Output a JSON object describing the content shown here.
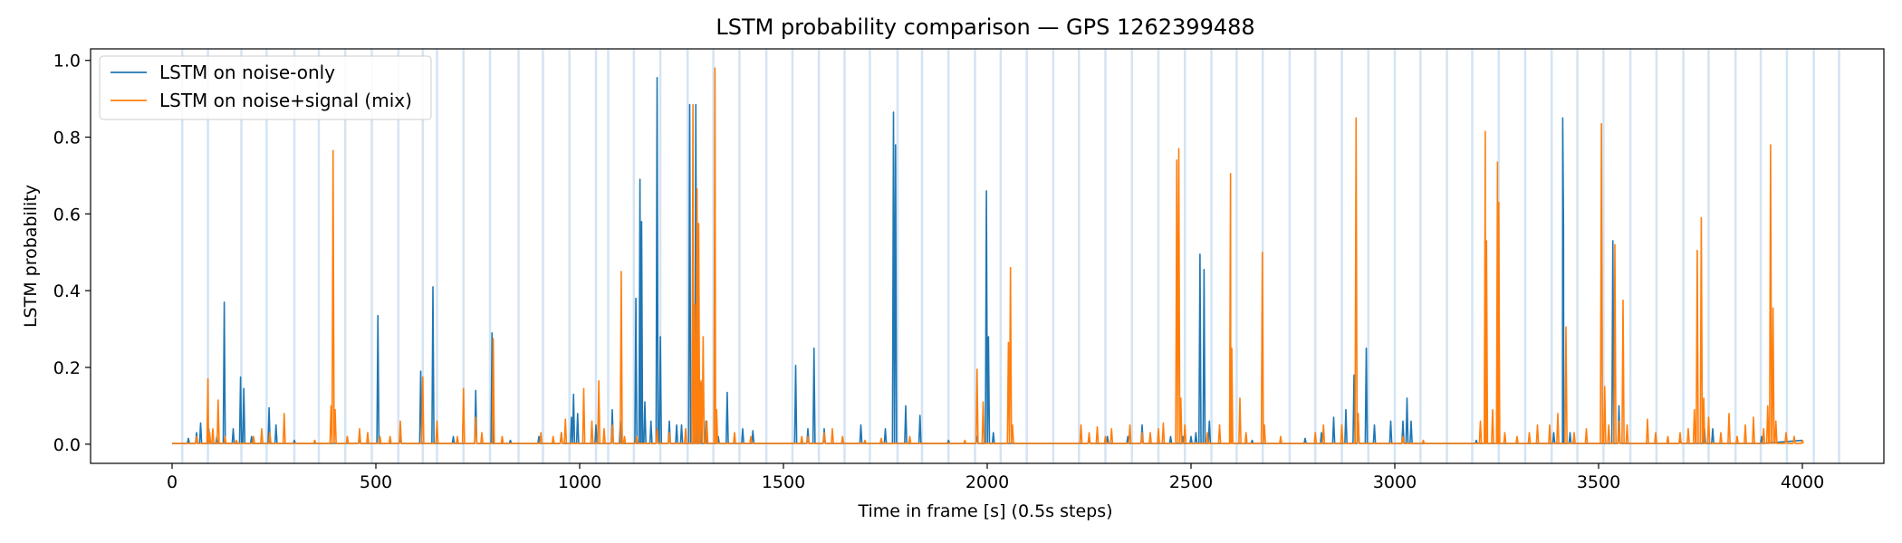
{
  "chart_data": {
    "type": "line",
    "title": "LSTM probability comparison — GPS 1262399488",
    "xlabel": "Time in frame [s] (0.5s steps)",
    "ylabel": "LSTM probability",
    "xlim": [
      -200,
      4200
    ],
    "ylim": [
      -0.05,
      1.03
    ],
    "x_ticks": [
      0,
      500,
      1000,
      1500,
      2000,
      2500,
      3000,
      3500,
      4000
    ],
    "x_tick_labels": [
      "0",
      "500",
      "1000",
      "1500",
      "2000",
      "2500",
      "3000",
      "3500",
      "4000"
    ],
    "y_ticks": [
      0.0,
      0.2,
      0.4,
      0.6,
      0.8,
      1.0
    ],
    "y_tick_labels": [
      "0.0",
      "0.2",
      "0.4",
      "0.6",
      "0.8",
      "1.0"
    ],
    "legend_position": "top-left",
    "colors": {
      "noise": "#1f77b4",
      "mix": "#ff7f0e",
      "band": "#c6dbef"
    },
    "vertical_bands_x": [
      25,
      88,
      170,
      232,
      300,
      360,
      425,
      490,
      555,
      615,
      650,
      715,
      780,
      850,
      910,
      975,
      1040,
      1070,
      1133,
      1198,
      1265,
      1328,
      1392,
      1458,
      1522,
      1587,
      1650,
      1712,
      1780,
      1840,
      1905,
      1970,
      2033,
      2097,
      2162,
      2225,
      2290,
      2355,
      2420,
      2485,
      2550,
      2612,
      2676,
      2742,
      2805,
      2870,
      2935,
      3000,
      3063,
      3128,
      3190,
      3255,
      3320,
      3385,
      3448,
      3512,
      3578,
      3642,
      3708,
      3770,
      3836,
      3898,
      3962,
      4028,
      4090
    ],
    "series": [
      {
        "name": "LSTM on noise-only",
        "color": "#1f77b4",
        "peaks": [
          [
            40,
            0.015
          ],
          [
            60,
            0.03
          ],
          [
            70,
            0.055
          ],
          [
            90,
            0.04
          ],
          [
            110,
            0.02
          ],
          [
            128,
            0.37
          ],
          [
            150,
            0.04
          ],
          [
            168,
            0.175
          ],
          [
            176,
            0.145
          ],
          [
            195,
            0.02
          ],
          [
            238,
            0.095
          ],
          [
            255,
            0.05
          ],
          [
            300,
            0.01
          ],
          [
            460,
            0.015
          ],
          [
            505,
            0.335
          ],
          [
            560,
            0.02
          ],
          [
            610,
            0.19
          ],
          [
            640,
            0.41
          ],
          [
            690,
            0.02
          ],
          [
            745,
            0.14
          ],
          [
            785,
            0.29
          ],
          [
            830,
            0.01
          ],
          [
            900,
            0.02
          ],
          [
            955,
            0.03
          ],
          [
            980,
            0.07
          ],
          [
            985,
            0.13
          ],
          [
            995,
            0.08
          ],
          [
            1040,
            0.05
          ],
          [
            1080,
            0.09
          ],
          [
            1100,
            0.06
          ],
          [
            1138,
            0.38
          ],
          [
            1148,
            0.69
          ],
          [
            1152,
            0.58
          ],
          [
            1160,
            0.11
          ],
          [
            1175,
            0.06
          ],
          [
            1190,
            0.955
          ],
          [
            1198,
            0.28
          ],
          [
            1220,
            0.06
          ],
          [
            1238,
            0.05
          ],
          [
            1250,
            0.05
          ],
          [
            1270,
            0.885
          ],
          [
            1285,
            0.885
          ],
          [
            1295,
            0.16
          ],
          [
            1310,
            0.06
          ],
          [
            1340,
            0.02
          ],
          [
            1362,
            0.135
          ],
          [
            1400,
            0.04
          ],
          [
            1425,
            0.035
          ],
          [
            1530,
            0.205
          ],
          [
            1560,
            0.04
          ],
          [
            1575,
            0.25
          ],
          [
            1600,
            0.04
          ],
          [
            1690,
            0.05
          ],
          [
            1750,
            0.04
          ],
          [
            1770,
            0.865
          ],
          [
            1775,
            0.78
          ],
          [
            1800,
            0.1
          ],
          [
            1835,
            0.075
          ],
          [
            1905,
            0.01
          ],
          [
            1975,
            0.02
          ],
          [
            1998,
            0.66
          ],
          [
            2003,
            0.28
          ],
          [
            2015,
            0.03
          ],
          [
            2250,
            0.02
          ],
          [
            2295,
            0.02
          ],
          [
            2345,
            0.02
          ],
          [
            2380,
            0.05
          ],
          [
            2450,
            0.02
          ],
          [
            2480,
            0.02
          ],
          [
            2500,
            0.02
          ],
          [
            2512,
            0.03
          ],
          [
            2522,
            0.495
          ],
          [
            2532,
            0.455
          ],
          [
            2545,
            0.06
          ],
          [
            2600,
            0.03
          ],
          [
            2650,
            0.01
          ],
          [
            2780,
            0.015
          ],
          [
            2820,
            0.03
          ],
          [
            2850,
            0.07
          ],
          [
            2880,
            0.09
          ],
          [
            2900,
            0.18
          ],
          [
            2910,
            0.08
          ],
          [
            2930,
            0.25
          ],
          [
            2950,
            0.05
          ],
          [
            2990,
            0.06
          ],
          [
            3020,
            0.06
          ],
          [
            3030,
            0.12
          ],
          [
            3040,
            0.06
          ],
          [
            3200,
            0.01
          ],
          [
            3390,
            0.03
          ],
          [
            3412,
            0.85
          ],
          [
            3414,
            0.56
          ],
          [
            3430,
            0.03
          ],
          [
            3535,
            0.53
          ],
          [
            3550,
            0.1
          ],
          [
            3700,
            0.01
          ],
          [
            3760,
            0.04
          ],
          [
            3780,
            0.04
          ],
          [
            3900,
            0.02
          ]
        ]
      },
      {
        "name": "LSTM on noise+signal (mix)",
        "color": "#ff7f0e",
        "peaks": [
          [
            60,
            0.02
          ],
          [
            88,
            0.17
          ],
          [
            92,
            0.03
          ],
          [
            100,
            0.04
          ],
          [
            113,
            0.115
          ],
          [
            130,
            0.02
          ],
          [
            158,
            0.01
          ],
          [
            200,
            0.02
          ],
          [
            220,
            0.04
          ],
          [
            240,
            0.03
          ],
          [
            275,
            0.08
          ],
          [
            350,
            0.01
          ],
          [
            390,
            0.1
          ],
          [
            395,
            0.765
          ],
          [
            400,
            0.09
          ],
          [
            430,
            0.02
          ],
          [
            460,
            0.04
          ],
          [
            480,
            0.03
          ],
          [
            510,
            0.02
          ],
          [
            535,
            0.02
          ],
          [
            560,
            0.06
          ],
          [
            615,
            0.175
          ],
          [
            650,
            0.06
          ],
          [
            700,
            0.02
          ],
          [
            715,
            0.145
          ],
          [
            745,
            0.07
          ],
          [
            760,
            0.03
          ],
          [
            788,
            0.275
          ],
          [
            810,
            0.02
          ],
          [
            905,
            0.03
          ],
          [
            935,
            0.02
          ],
          [
            955,
            0.03
          ],
          [
            965,
            0.065
          ],
          [
            1010,
            0.145
          ],
          [
            1030,
            0.06
          ],
          [
            1047,
            0.165
          ],
          [
            1060,
            0.04
          ],
          [
            1080,
            0.05
          ],
          [
            1102,
            0.45
          ],
          [
            1110,
            0.02
          ],
          [
            1140,
            0.02
          ],
          [
            1190,
            0.04
          ],
          [
            1220,
            0.03
          ],
          [
            1260,
            0.04
          ],
          [
            1278,
            0.885
          ],
          [
            1282,
            0.365
          ],
          [
            1288,
            0.665
          ],
          [
            1292,
            0.575
          ],
          [
            1298,
            0.165
          ],
          [
            1303,
            0.28
          ],
          [
            1312,
            0.06
          ],
          [
            1332,
            0.98
          ],
          [
            1336,
            0.09
          ],
          [
            1380,
            0.03
          ],
          [
            1420,
            0.02
          ],
          [
            1545,
            0.02
          ],
          [
            1560,
            0.02
          ],
          [
            1600,
            0.03
          ],
          [
            1620,
            0.04
          ],
          [
            1645,
            0.02
          ],
          [
            1700,
            0.01
          ],
          [
            1740,
            0.015
          ],
          [
            1810,
            0.02
          ],
          [
            1945,
            0.01
          ],
          [
            1975,
            0.195
          ],
          [
            1990,
            0.11
          ],
          [
            2052,
            0.265
          ],
          [
            2057,
            0.46
          ],
          [
            2062,
            0.05
          ],
          [
            2230,
            0.05
          ],
          [
            2250,
            0.03
          ],
          [
            2270,
            0.045
          ],
          [
            2290,
            0.02
          ],
          [
            2305,
            0.04
          ],
          [
            2350,
            0.05
          ],
          [
            2380,
            0.03
          ],
          [
            2400,
            0.03
          ],
          [
            2420,
            0.04
          ],
          [
            2432,
            0.055
          ],
          [
            2465,
            0.74
          ],
          [
            2470,
            0.77
          ],
          [
            2475,
            0.12
          ],
          [
            2485,
            0.05
          ],
          [
            2540,
            0.03
          ],
          [
            2570,
            0.05
          ],
          [
            2597,
            0.705
          ],
          [
            2600,
            0.25
          ],
          [
            2620,
            0.12
          ],
          [
            2635,
            0.03
          ],
          [
            2675,
            0.5
          ],
          [
            2680,
            0.05
          ],
          [
            2720,
            0.02
          ],
          [
            2805,
            0.03
          ],
          [
            2825,
            0.05
          ],
          [
            2870,
            0.05
          ],
          [
            2905,
            0.85
          ],
          [
            2910,
            0.08
          ],
          [
            3020,
            0.02
          ],
          [
            3070,
            0.01
          ],
          [
            3210,
            0.06
          ],
          [
            3222,
            0.815
          ],
          [
            3225,
            0.53
          ],
          [
            3240,
            0.09
          ],
          [
            3252,
            0.735
          ],
          [
            3255,
            0.63
          ],
          [
            3270,
            0.03
          ],
          [
            3300,
            0.02
          ],
          [
            3330,
            0.03
          ],
          [
            3350,
            0.05
          ],
          [
            3380,
            0.05
          ],
          [
            3400,
            0.08
          ],
          [
            3420,
            0.305
          ],
          [
            3440,
            0.03
          ],
          [
            3470,
            0.04
          ],
          [
            3507,
            0.835
          ],
          [
            3515,
            0.15
          ],
          [
            3525,
            0.05
          ],
          [
            3540,
            0.52
          ],
          [
            3550,
            0.06
          ],
          [
            3560,
            0.375
          ],
          [
            3570,
            0.05
          ],
          [
            3620,
            0.065
          ],
          [
            3640,
            0.03
          ],
          [
            3670,
            0.02
          ],
          [
            3700,
            0.03
          ],
          [
            3720,
            0.04
          ],
          [
            3735,
            0.09
          ],
          [
            3742,
            0.505
          ],
          [
            3752,
            0.59
          ],
          [
            3758,
            0.12
          ],
          [
            3770,
            0.07
          ],
          [
            3800,
            0.03
          ],
          [
            3820,
            0.08
          ],
          [
            3840,
            0.02
          ],
          [
            3860,
            0.05
          ],
          [
            3880,
            0.07
          ],
          [
            3905,
            0.04
          ],
          [
            3915,
            0.1
          ],
          [
            3922,
            0.78
          ],
          [
            3928,
            0.355
          ],
          [
            3935,
            0.06
          ],
          [
            3960,
            0.03
          ],
          [
            3980,
            0.02
          ],
          [
            4000,
            0.01
          ]
        ]
      }
    ]
  }
}
